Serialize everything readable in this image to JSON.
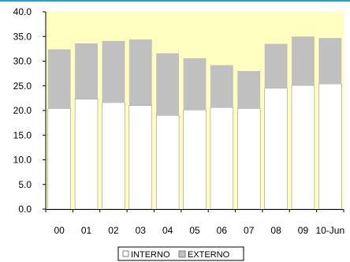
{
  "chart_data": {
    "type": "bar",
    "stacked": true,
    "categories": [
      "00",
      "01",
      "02",
      "03",
      "04",
      "05",
      "06",
      "07",
      "08",
      "09",
      "10-Jun"
    ],
    "series": [
      {
        "name": "INTERNO",
        "values": [
          20.4,
          22.3,
          21.6,
          21.0,
          19.0,
          20.1,
          20.6,
          20.4,
          24.5,
          25.1,
          25.4
        ]
      },
      {
        "name": "EXTERNO",
        "values": [
          12.0,
          11.3,
          12.5,
          13.4,
          12.6,
          10.5,
          8.6,
          7.6,
          9.0,
          9.9,
          9.3
        ]
      }
    ],
    "ylim": [
      0,
      40
    ],
    "y_ticks": [
      "0.0",
      "5.0",
      "10.0",
      "15.0",
      "20.0",
      "25.0",
      "30.0",
      "35.0",
      "40.0"
    ],
    "grid": false,
    "legend_position": "bottom",
    "colors": {
      "plot_background": "#ffffc0",
      "INTERNO": "#ffffff",
      "EXTERNO": "#c0c0c0",
      "border": "#000000",
      "top_rule": "#2e9fc0"
    }
  }
}
